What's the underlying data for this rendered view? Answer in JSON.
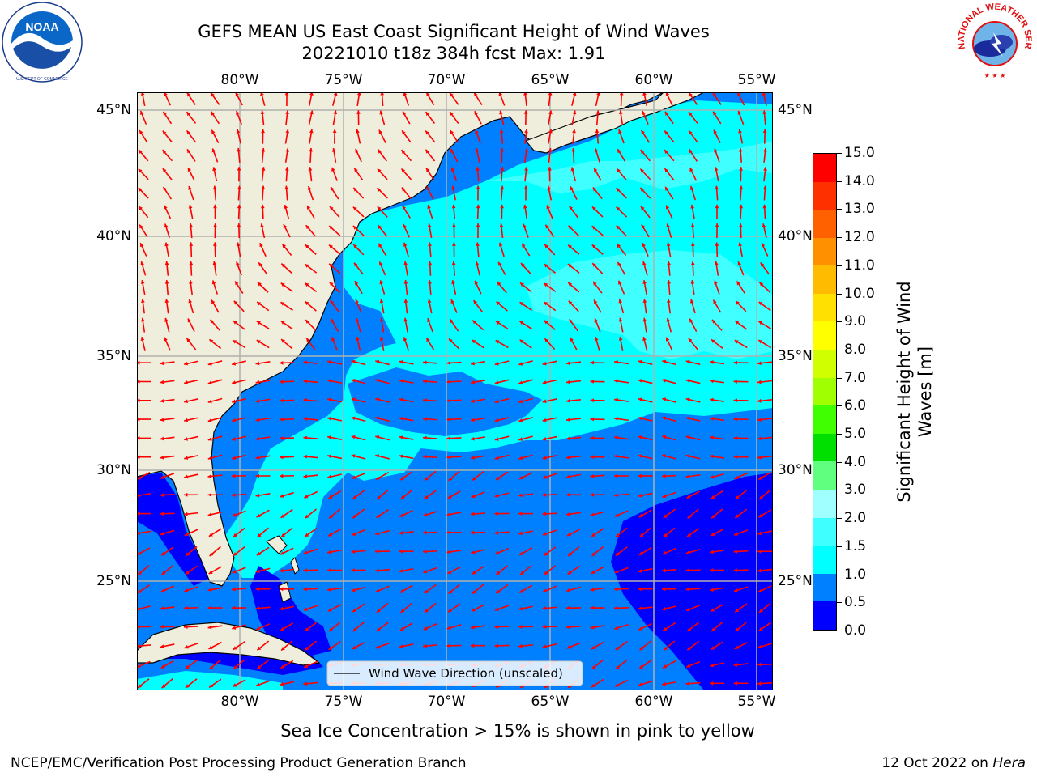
{
  "header": {
    "title_line1": "GEFS MEAN US East Coast Significant Height of Wind Waves",
    "title_line2": "20221010 t18z 384h fcst   Max: 1.91"
  },
  "logos": {
    "noaa": {
      "icon": "noaa-logo",
      "text": "NOAA",
      "ring_text": "NATIONAL OCEANIC AND ATMOSPHERIC ADMINISTRATION · U.S. DEPARTMENT OF COMMERCE"
    },
    "nws": {
      "icon": "nws-logo",
      "ring_text": "NATIONAL WEATHER SERVICE"
    }
  },
  "map": {
    "lon_labels": [
      "80°W",
      "75°W",
      "70°W",
      "65°W",
      "60°W",
      "55°W"
    ],
    "lat_labels": [
      "45°N",
      "40°N",
      "35°N",
      "30°N",
      "25°N"
    ],
    "extent": {
      "lon": [
        -85,
        -54.3
      ],
      "lat": [
        20.3,
        45.8
      ]
    },
    "legend_label": "Wind Wave Direction (unscaled)",
    "land_color": "#efeedc",
    "arrow_color": "#ff0000",
    "gridline_color": "#b0b0b0"
  },
  "colorbar": {
    "title": "Significant Height of Wind Waves [m]",
    "levels": [
      "0.0",
      "0.5",
      "1.0",
      "1.5",
      "2.0",
      "3.0",
      "4.0",
      "5.0",
      "6.0",
      "7.0",
      "8.0",
      "9.0",
      "10.0",
      "11.0",
      "12.0",
      "13.0",
      "14.0",
      "15.0"
    ],
    "colors": [
      "#0000ff",
      "#0080ff",
      "#00ffff",
      "#40ffff",
      "#a0ffff",
      "#60ff80",
      "#00e000",
      "#40ff00",
      "#a0ff00",
      "#d0ff00",
      "#ffff00",
      "#ffe000",
      "#ffbb00",
      "#ff9000",
      "#ff6000",
      "#ff3000",
      "#ff0000"
    ]
  },
  "subtitle": "Sea Ice Concentration > 15% is shown in pink to yellow",
  "footer": {
    "left": "NCEP/EMC/Verification Post Processing Product Generation Branch",
    "right_date": "12 Oct 2022 on ",
    "right_host": "Hera"
  }
}
